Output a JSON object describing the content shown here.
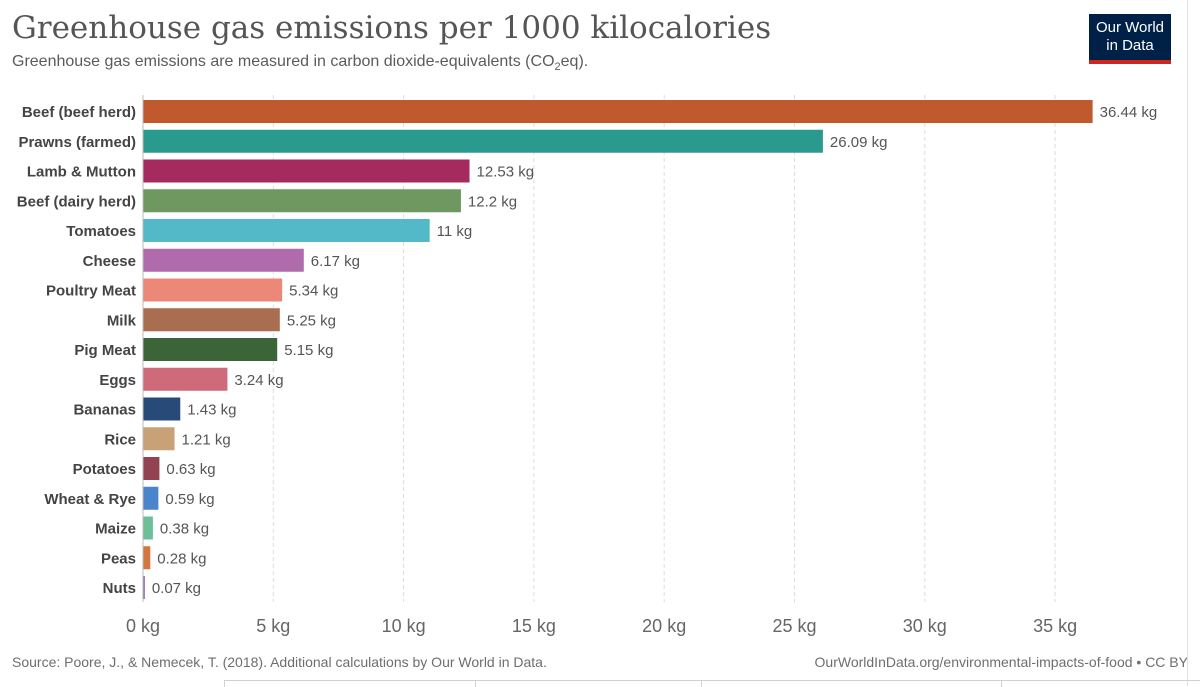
{
  "header": {
    "title": "Greenhouse gas emissions per 1000 kilocalories",
    "subtitle_prefix": "Greenhouse gas emissions are measured in carbon dioxide-equivalents (CO",
    "subtitle_sub": "2",
    "subtitle_suffix": "eq).",
    "logo_line1": "Our World",
    "logo_line2": "in Data"
  },
  "footer": {
    "source": "Source: Poore, J., & Nemecek, T. (2018). Additional calculations by Our World in Data.",
    "url_license": "OurWorldInData.org/environmental-impacts-of-food • CC BY"
  },
  "colors": {
    "logo_bg": "#002147",
    "logo_bar": "#ce261e",
    "grid": "#dddddd"
  },
  "chart_data": {
    "type": "bar",
    "orientation": "horizontal",
    "title": "Greenhouse gas emissions per 1000 kilocalories",
    "unit": "kg",
    "xlim": [
      0,
      35
    ],
    "xticks": [
      0,
      5,
      10,
      15,
      20,
      25,
      30,
      35
    ],
    "xtick_labels": [
      "0 kg",
      "5 kg",
      "10 kg",
      "15 kg",
      "20 kg",
      "25 kg",
      "30 kg",
      "35 kg"
    ],
    "categories": [
      "Beef (beef herd)",
      "Prawns (farmed)",
      "Lamb & Mutton",
      "Beef (dairy herd)",
      "Tomatoes",
      "Cheese",
      "Poultry Meat",
      "Milk",
      "Pig Meat",
      "Eggs",
      "Bananas",
      "Rice",
      "Potatoes",
      "Wheat & Rye",
      "Maize",
      "Peas",
      "Nuts"
    ],
    "values": [
      36.44,
      26.09,
      12.53,
      12.2,
      11,
      6.17,
      5.34,
      5.25,
      5.15,
      3.24,
      1.43,
      1.21,
      0.63,
      0.59,
      0.38,
      0.28,
      0.07
    ],
    "value_labels": [
      "36.44 kg",
      "26.09 kg",
      "12.53 kg",
      "12.2 kg",
      "11 kg",
      "6.17 kg",
      "5.34 kg",
      "5.25 kg",
      "5.15 kg",
      "3.24 kg",
      "1.43 kg",
      "1.21 kg",
      "0.63 kg",
      "0.59 kg",
      "0.38 kg",
      "0.28 kg",
      "0.07 kg"
    ],
    "bar_colors": [
      "#c05a2e",
      "#2a9a8e",
      "#a52b5f",
      "#6e9860",
      "#53b8c7",
      "#b06bac",
      "#ec8877",
      "#a86e4f",
      "#3b6538",
      "#cf6a7a",
      "#284a78",
      "#c8a177",
      "#934252",
      "#4a85cc",
      "#6bc09a",
      "#d2753e",
      "#9166a4"
    ],
    "grid": true
  }
}
